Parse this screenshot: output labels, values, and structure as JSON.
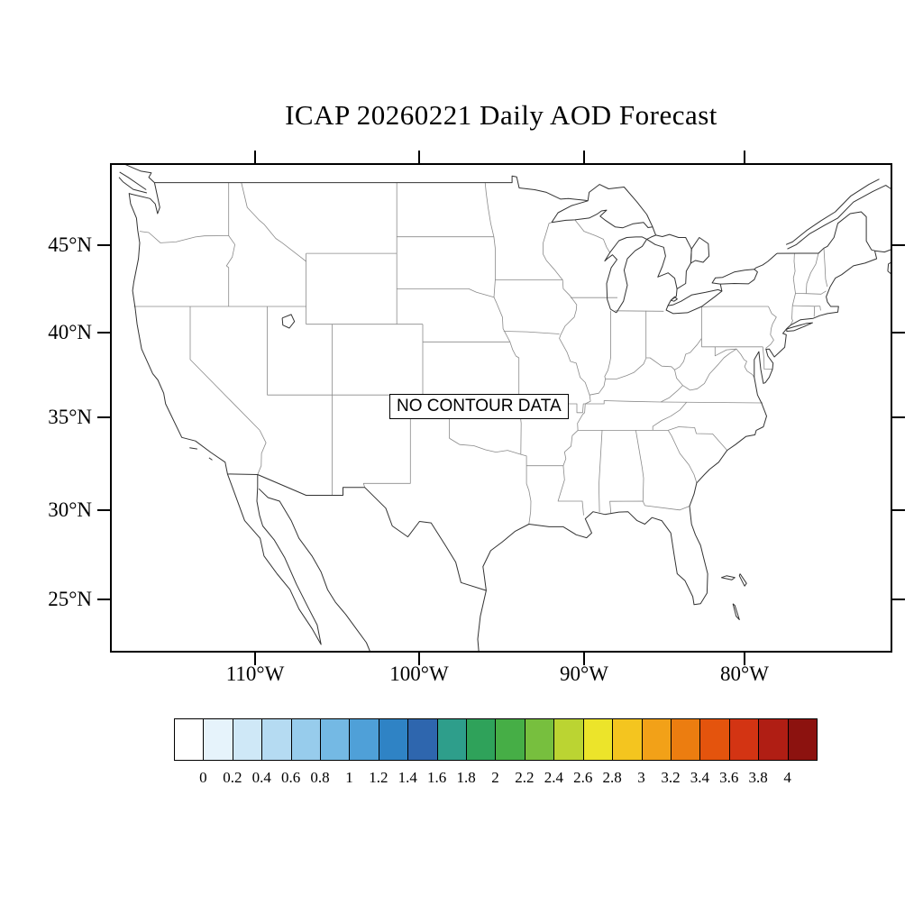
{
  "title": "ICAP 20260221 Daily AOD Forecast",
  "map": {
    "no_data_label": "NO CONTOUR DATA"
  },
  "axes": {
    "lat_labels": [
      "45°N",
      "40°N",
      "35°N",
      "30°N",
      "25°N"
    ],
    "lon_labels": [
      "110°W",
      "100°W",
      "90°W",
      "80°W"
    ]
  },
  "colorbar": {
    "tick_labels": [
      "0",
      "0.2",
      "0.4",
      "0.6",
      "0.8",
      "1",
      "1.2",
      "1.4",
      "1.6",
      "1.8",
      "2",
      "2.2",
      "2.4",
      "2.6",
      "2.8",
      "3",
      "3.2",
      "3.4",
      "3.6",
      "3.8",
      "4"
    ],
    "colors": [
      "#FFFFFF",
      "#E6F3FB",
      "#CFE8F7",
      "#B5DBF2",
      "#97CCEC",
      "#74B9E4",
      "#4FA0D8",
      "#2F83C5",
      "#2E66AE",
      "#2E9E8B",
      "#2FA25A",
      "#46AE46",
      "#77BF3E",
      "#BBD432",
      "#ECE42A",
      "#F4C51F",
      "#F2A118",
      "#EC7D10",
      "#E4540D",
      "#D33413",
      "#B01E14",
      "#8C120F"
    ]
  },
  "chart_data": {
    "type": "map",
    "title": "ICAP 20260221 Daily AOD Forecast",
    "region": "Contiguous United States with surrounding Canada, Mexico and Atlantic coast",
    "lat_ticks": [
      45,
      40,
      35,
      30,
      25
    ],
    "lon_ticks": [
      -110,
      -100,
      -90,
      -80
    ],
    "colorbar_min": 0,
    "colorbar_max": 4,
    "colorbar_step": 0.2,
    "data_status": "NO CONTOUR DATA"
  }
}
